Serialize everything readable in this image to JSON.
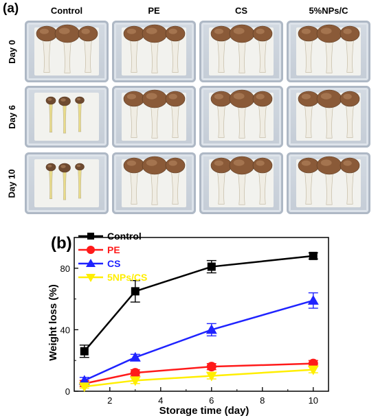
{
  "panel_a": {
    "label": "(a)",
    "columns": [
      "Control",
      "PE",
      "CS",
      "5%NPs/C"
    ],
    "rows": [
      "Day 0",
      "Day 6",
      "Day 10"
    ],
    "photo_description_colors": {
      "tray": "#c9d0d9",
      "pad": "#f2f2ee",
      "cap_fresh": "#8a5a38",
      "cap_dry": "#6e4a30",
      "stem_fresh": "#f0ede4",
      "stem_dry": "#e9dc8a"
    }
  },
  "panel_b": {
    "label": "(b)"
  },
  "chart_data": {
    "type": "line",
    "xlabel": "Storage time (day)",
    "ylabel": "Weight loss (%)",
    "xlim": [
      0.6,
      10.6
    ],
    "ylim": [
      0,
      100
    ],
    "xticks": [
      2,
      4,
      6,
      8,
      10
    ],
    "yticks": [
      0,
      40,
      80
    ],
    "grid": false,
    "legend_position": "top-left",
    "x": [
      1,
      3,
      6,
      10
    ],
    "series": [
      {
        "name": "Control",
        "color": "#000000",
        "marker": "square",
        "values": [
          26,
          65,
          81,
          88
        ],
        "errors": [
          4,
          7,
          4,
          2
        ]
      },
      {
        "name": "PE",
        "color": "#ff1a1a",
        "marker": "circle",
        "values": [
          5,
          12,
          16,
          18
        ],
        "errors": [
          2,
          2,
          2,
          2
        ]
      },
      {
        "name": "CS",
        "color": "#1f23ff",
        "marker": "triangle-up",
        "values": [
          7,
          22,
          40,
          59
        ],
        "errors": [
          2,
          2,
          4,
          5
        ]
      },
      {
        "name": "5NPs/CS",
        "color": "#ffee00",
        "marker": "triangle-down",
        "values": [
          3,
          7,
          10,
          14
        ],
        "errors": [
          1,
          2,
          2,
          2
        ]
      }
    ]
  }
}
